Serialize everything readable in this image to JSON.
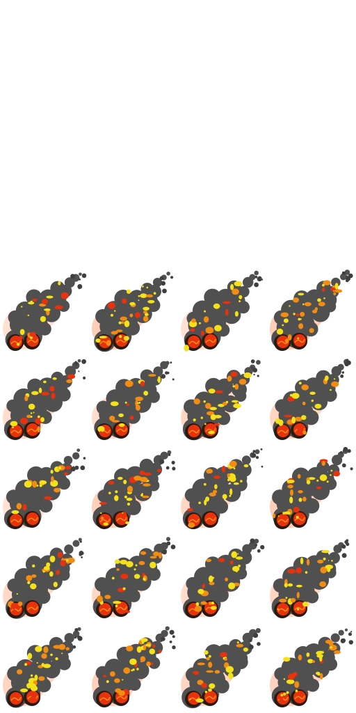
{
  "sprite_sheet": {
    "columns": 4,
    "rows": 8,
    "empty_rows": 3,
    "filled_rows": 5,
    "frame_count": 20,
    "background": "#ffffff",
    "colors": {
      "smoke": "#505050",
      "smoke_dark": "#3f3f3f",
      "fire_yellow": "#f5e11a",
      "fire_orange": "#f28c12",
      "fire_red": "#e8320e",
      "ember_dark": "#2a1a12",
      "glow": "#ff7a3a"
    },
    "frames": [
      {
        "id": 1,
        "intensity": 0.25
      },
      {
        "id": 2,
        "intensity": 0.85
      },
      {
        "id": 3,
        "intensity": 0.25
      },
      {
        "id": 4,
        "intensity": 0.85
      },
      {
        "id": 5,
        "intensity": 0.45
      },
      {
        "id": 6,
        "intensity": 0.35
      },
      {
        "id": 7,
        "intensity": 0.6
      },
      {
        "id": 8,
        "intensity": 0.6
      },
      {
        "id": 9,
        "intensity": 0.3
      },
      {
        "id": 10,
        "intensity": 0.75
      },
      {
        "id": 11,
        "intensity": 0.55
      },
      {
        "id": 12,
        "intensity": 0.8
      },
      {
        "id": 13,
        "intensity": 0.5
      },
      {
        "id": 14,
        "intensity": 0.55
      },
      {
        "id": 15,
        "intensity": 0.45
      },
      {
        "id": 16,
        "intensity": 0.6
      },
      {
        "id": 17,
        "intensity": 0.65
      },
      {
        "id": 18,
        "intensity": 0.75
      },
      {
        "id": 19,
        "intensity": 0.6
      },
      {
        "id": 20,
        "intensity": 0.7
      }
    ]
  }
}
